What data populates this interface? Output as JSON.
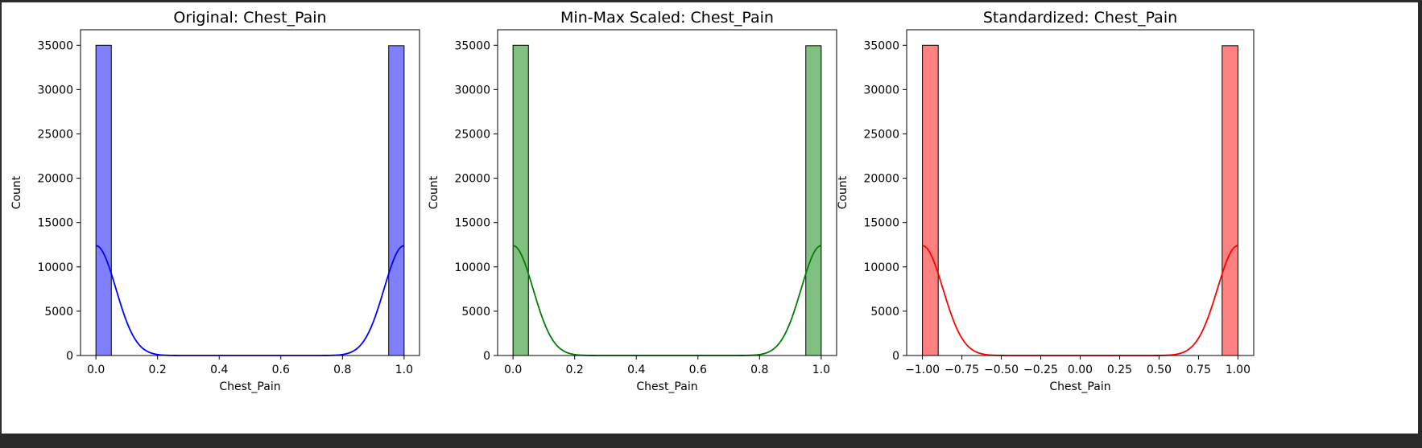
{
  "chart_data": [
    {
      "type": "bar",
      "title": "Original: Chest_Pain",
      "xlabel": "Chest_Pain",
      "ylabel": "Count",
      "xlim": [
        -0.05,
        1.05
      ],
      "ylim": [
        0,
        36750
      ],
      "xticks": [
        0.0,
        0.2,
        0.4,
        0.6,
        0.8,
        1.0
      ],
      "xtick_labels": [
        "0.0",
        "0.2",
        "0.4",
        "0.6",
        "0.8",
        "1.0"
      ],
      "yticks": [
        0,
        5000,
        10000,
        15000,
        20000,
        25000,
        30000,
        35000
      ],
      "ytick_labels": [
        "0",
        "5000",
        "10000",
        "15000",
        "20000",
        "25000",
        "30000",
        "35000"
      ],
      "bars": [
        {
          "x0": 0.0,
          "x1": 0.05,
          "count": 35000
        },
        {
          "x0": 0.95,
          "x1": 1.0,
          "count": 34950
        }
      ],
      "kde": {
        "x_min": 0.0,
        "x_max": 1.0,
        "peak": 12400,
        "bandwidth": 0.065
      },
      "fill_color": "#8080ff",
      "line_color": "#0000ff",
      "grid": false
    },
    {
      "type": "bar",
      "title": "Min-Max Scaled: Chest_Pain",
      "xlabel": "Chest_Pain",
      "ylabel": "Count",
      "xlim": [
        -0.05,
        1.05
      ],
      "ylim": [
        0,
        36750
      ],
      "xticks": [
        0.0,
        0.2,
        0.4,
        0.6,
        0.8,
        1.0
      ],
      "xtick_labels": [
        "0.0",
        "0.2",
        "0.4",
        "0.6",
        "0.8",
        "1.0"
      ],
      "yticks": [
        0,
        5000,
        10000,
        15000,
        20000,
        25000,
        30000,
        35000
      ],
      "ytick_labels": [
        "0",
        "5000",
        "10000",
        "15000",
        "20000",
        "25000",
        "30000",
        "35000"
      ],
      "bars": [
        {
          "x0": 0.0,
          "x1": 0.05,
          "count": 35000
        },
        {
          "x0": 0.95,
          "x1": 1.0,
          "count": 34950
        }
      ],
      "kde": {
        "x_min": 0.0,
        "x_max": 1.0,
        "peak": 12400,
        "bandwidth": 0.065
      },
      "fill_color": "#80c080",
      "line_color": "#008000",
      "grid": false
    },
    {
      "type": "bar",
      "title": "Standardized: Chest_Pain",
      "xlabel": "Chest_Pain",
      "ylabel": "Count",
      "xlim": [
        -1.1,
        1.1
      ],
      "ylim": [
        0,
        36750
      ],
      "xticks": [
        -1.0,
        -0.75,
        -0.5,
        -0.25,
        0.0,
        0.25,
        0.5,
        0.75,
        1.0
      ],
      "xtick_labels": [
        "−1.00",
        "−0.75",
        "−0.50",
        "−0.25",
        "0.00",
        "0.25",
        "0.50",
        "0.75",
        "1.00"
      ],
      "yticks": [
        0,
        5000,
        10000,
        15000,
        20000,
        25000,
        30000,
        35000
      ],
      "ytick_labels": [
        "0",
        "5000",
        "10000",
        "15000",
        "20000",
        "25000",
        "30000",
        "35000"
      ],
      "bars": [
        {
          "x0": -1.0,
          "x1": -0.9,
          "count": 35000
        },
        {
          "x0": 0.9,
          "x1": 1.0,
          "count": 34950
        }
      ],
      "kde": {
        "x_min": -1.0,
        "x_max": 1.0,
        "peak": 12400,
        "bandwidth": 0.13
      },
      "fill_color": "#ff8080",
      "line_color": "#ff0000",
      "grid": false
    }
  ]
}
